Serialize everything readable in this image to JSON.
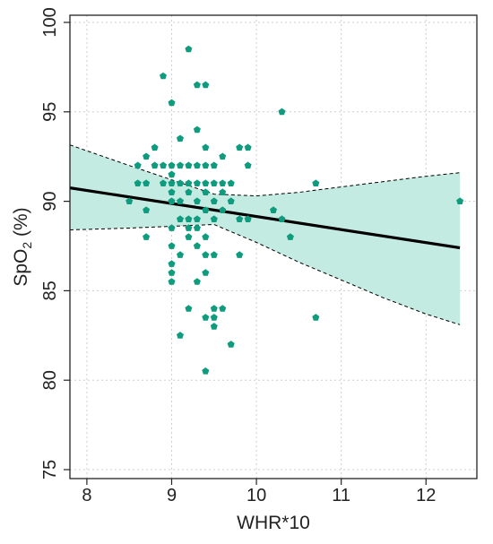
{
  "chart_data": {
    "type": "scatter",
    "xlabel": "WHR*10",
    "ylabel_main": "SpO",
    "ylabel_sub": "2",
    "ylabel_unit": " (%)",
    "xlim": [
      7.8,
      12.6
    ],
    "ylim": [
      74.5,
      100.4
    ],
    "x_ticks": [
      8,
      9,
      10,
      11,
      12
    ],
    "y_ticks": [
      75,
      80,
      85,
      90,
      95,
      100
    ],
    "grid": true,
    "colors": {
      "points": "#0f9b7d",
      "band": "#c4ebe2",
      "line": "#000000",
      "grid": "#cfcfcf",
      "frame": "#222222"
    },
    "fit_line": {
      "x": [
        7.8,
        12.4
      ],
      "y": [
        90.75,
        87.4
      ]
    },
    "confidence_band": {
      "x": [
        7.8,
        8.5,
        9.0,
        9.5,
        10.0,
        10.5,
        11.0,
        11.5,
        12.0,
        12.4
      ],
      "upper": [
        93.15,
        92.0,
        91.2,
        90.4,
        90.3,
        90.5,
        90.8,
        91.1,
        91.4,
        91.6
      ],
      "lower": [
        88.4,
        88.5,
        88.6,
        88.7,
        87.7,
        86.6,
        85.6,
        84.6,
        83.7,
        83.1
      ]
    },
    "points": [
      {
        "x": 8.5,
        "y": 90.0
      },
      {
        "x": 8.6,
        "y": 92.0
      },
      {
        "x": 8.6,
        "y": 91.0
      },
      {
        "x": 8.7,
        "y": 92.5
      },
      {
        "x": 8.7,
        "y": 91.0
      },
      {
        "x": 8.7,
        "y": 89.5
      },
      {
        "x": 8.7,
        "y": 88.0
      },
      {
        "x": 8.8,
        "y": 93.0
      },
      {
        "x": 8.8,
        "y": 92.0
      },
      {
        "x": 8.9,
        "y": 97.0
      },
      {
        "x": 8.9,
        "y": 92.0
      },
      {
        "x": 8.9,
        "y": 91.0
      },
      {
        "x": 9.0,
        "y": 95.5
      },
      {
        "x": 9.0,
        "y": 92.0
      },
      {
        "x": 9.0,
        "y": 91.5
      },
      {
        "x": 9.0,
        "y": 91.0
      },
      {
        "x": 9.0,
        "y": 90.5
      },
      {
        "x": 9.0,
        "y": 90.0
      },
      {
        "x": 9.0,
        "y": 88.5
      },
      {
        "x": 9.0,
        "y": 87.5
      },
      {
        "x": 9.0,
        "y": 86.5
      },
      {
        "x": 9.0,
        "y": 86.0
      },
      {
        "x": 9.0,
        "y": 85.5
      },
      {
        "x": 9.1,
        "y": 93.5
      },
      {
        "x": 9.1,
        "y": 92.0
      },
      {
        "x": 9.1,
        "y": 91.0
      },
      {
        "x": 9.1,
        "y": 90.0
      },
      {
        "x": 9.1,
        "y": 89.0
      },
      {
        "x": 9.1,
        "y": 87.0
      },
      {
        "x": 9.1,
        "y": 82.5
      },
      {
        "x": 9.2,
        "y": 98.5
      },
      {
        "x": 9.2,
        "y": 92.0
      },
      {
        "x": 9.2,
        "y": 91.0
      },
      {
        "x": 9.2,
        "y": 90.5
      },
      {
        "x": 9.2,
        "y": 89.0
      },
      {
        "x": 9.2,
        "y": 88.5
      },
      {
        "x": 9.2,
        "y": 88.0
      },
      {
        "x": 9.2,
        "y": 84.0
      },
      {
        "x": 9.3,
        "y": 96.5
      },
      {
        "x": 9.3,
        "y": 94.0
      },
      {
        "x": 9.3,
        "y": 92.0
      },
      {
        "x": 9.3,
        "y": 91.0
      },
      {
        "x": 9.3,
        "y": 90.0
      },
      {
        "x": 9.3,
        "y": 89.0
      },
      {
        "x": 9.3,
        "y": 88.5
      },
      {
        "x": 9.3,
        "y": 87.5
      },
      {
        "x": 9.3,
        "y": 85.5
      },
      {
        "x": 9.4,
        "y": 96.5
      },
      {
        "x": 9.4,
        "y": 93.0
      },
      {
        "x": 9.4,
        "y": 92.0
      },
      {
        "x": 9.4,
        "y": 91.0
      },
      {
        "x": 9.4,
        "y": 90.5
      },
      {
        "x": 9.4,
        "y": 89.5
      },
      {
        "x": 9.4,
        "y": 88.0
      },
      {
        "x": 9.4,
        "y": 87.0
      },
      {
        "x": 9.4,
        "y": 86.0
      },
      {
        "x": 9.4,
        "y": 83.5
      },
      {
        "x": 9.4,
        "y": 80.5
      },
      {
        "x": 9.5,
        "y": 92.0
      },
      {
        "x": 9.5,
        "y": 91.0
      },
      {
        "x": 9.5,
        "y": 90.0
      },
      {
        "x": 9.5,
        "y": 89.0
      },
      {
        "x": 9.5,
        "y": 87.0
      },
      {
        "x": 9.5,
        "y": 84.0
      },
      {
        "x": 9.5,
        "y": 83.5
      },
      {
        "x": 9.5,
        "y": 83.0
      },
      {
        "x": 9.6,
        "y": 92.5
      },
      {
        "x": 9.6,
        "y": 91.0
      },
      {
        "x": 9.6,
        "y": 90.5
      },
      {
        "x": 9.6,
        "y": 89.5
      },
      {
        "x": 9.6,
        "y": 84.0
      },
      {
        "x": 9.7,
        "y": 91.0
      },
      {
        "x": 9.7,
        "y": 90.0
      },
      {
        "x": 9.7,
        "y": 82.0
      },
      {
        "x": 9.8,
        "y": 93.0
      },
      {
        "x": 9.8,
        "y": 89.0
      },
      {
        "x": 9.8,
        "y": 87.0
      },
      {
        "x": 9.9,
        "y": 93.0
      },
      {
        "x": 9.9,
        "y": 92.0
      },
      {
        "x": 9.9,
        "y": 89.0
      },
      {
        "x": 10.2,
        "y": 89.5
      },
      {
        "x": 10.3,
        "y": 95.0
      },
      {
        "x": 10.3,
        "y": 89.0
      },
      {
        "x": 10.4,
        "y": 88.0
      },
      {
        "x": 10.7,
        "y": 91.0
      },
      {
        "x": 10.7,
        "y": 83.5
      },
      {
        "x": 12.4,
        "y": 90.0
      }
    ]
  }
}
